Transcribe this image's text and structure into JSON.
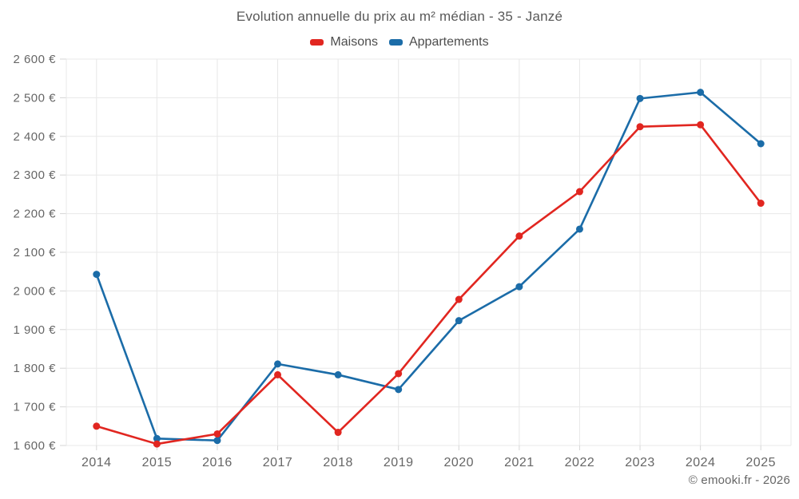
{
  "title": "Evolution annuelle du prix au m² médian - 35 - Janzé",
  "footer": "© emooki.fr - 2026",
  "colors": {
    "maisons_red": "#e12620",
    "appartements_blue": "#1b6ca8",
    "grid_line": "#e8e8e8",
    "tick_mark": "#d6d6d6",
    "axis_text": "#666666",
    "title_text": "#595959",
    "background": "#ffffff"
  },
  "chart_data": {
    "type": "line",
    "title": "Evolution annuelle du prix au m² médian - 35 - Janzé",
    "categories": [
      "2014",
      "2015",
      "2016",
      "2017",
      "2018",
      "2019",
      "2020",
      "2021",
      "2022",
      "2023",
      "2024",
      "2025"
    ],
    "series": [
      {
        "name": "Maisons",
        "color": "#e12620",
        "values": [
          1650,
          1604,
          1630,
          1783,
          1634,
          1786,
          1978,
          2142,
          2257,
          2425,
          2430,
          2227
        ]
      },
      {
        "name": "Appartements",
        "color": "#1b6ca8",
        "values": [
          2043,
          1618,
          1613,
          1811,
          1783,
          1745,
          1923,
          2011,
          2160,
          2498,
          2514,
          2381
        ]
      }
    ],
    "xlabel": "",
    "ylabel": "",
    "ylim": [
      1600,
      2600
    ],
    "ytick_step": 100,
    "ytick_labels": [
      "1 600 €",
      "1 700 €",
      "1 800 €",
      "1 900 €",
      "2 000 €",
      "2 100 €",
      "2 200 €",
      "2 300 €",
      "2 400 €",
      "2 500 €",
      "2 600 €"
    ],
    "grid": true,
    "legend_position": "top",
    "marker": "circle"
  }
}
